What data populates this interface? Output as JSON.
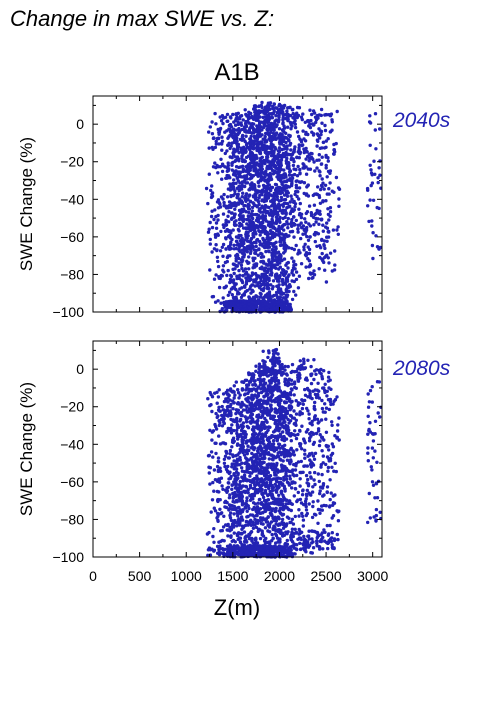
{
  "page_title": "Change in max SWE vs. Z:",
  "scenario": "A1B",
  "xlabel": "Z(m)",
  "ylabel": "SWE Change (%)",
  "colors": {
    "points": "#2323b4",
    "period_label": "#2323b4",
    "text": "#000000"
  },
  "chart_data": [
    {
      "type": "scatter",
      "period": "2040s",
      "xlim": [
        0,
        3100
      ],
      "ylim": [
        -100,
        15
      ],
      "xticks": [
        0,
        500,
        1000,
        1500,
        2000,
        2500,
        3000
      ],
      "yticks": [
        0,
        -20,
        -40,
        -60,
        -80,
        -100
      ],
      "ytick_labels": [
        "0",
        "−20",
        "−40",
        "−60",
        "−80",
        "−100"
      ],
      "columns": [
        {
          "x": 1290,
          "ymin": -96,
          "ymax": 6,
          "n": 40
        },
        {
          "x": 1320,
          "ymin": -93,
          "ymax": 4,
          "n": 35
        },
        {
          "x": 1410,
          "ymin": -100,
          "ymax": 6,
          "n": 60
        },
        {
          "x": 1460,
          "ymin": -100,
          "ymax": 5,
          "n": 70
        },
        {
          "x": 1500,
          "ymin": -100,
          "ymax": 6,
          "n": 80
        },
        {
          "x": 1540,
          "ymin": -100,
          "ymax": 7,
          "n": 90
        },
        {
          "x": 1580,
          "ymin": -100,
          "ymax": 8,
          "n": 95
        },
        {
          "x": 1620,
          "ymin": -100,
          "ymax": 8,
          "n": 100
        },
        {
          "x": 1660,
          "ymin": -100,
          "ymax": 9,
          "n": 110
        },
        {
          "x": 1700,
          "ymin": -100,
          "ymax": 9,
          "n": 115
        },
        {
          "x": 1740,
          "ymin": -100,
          "ymax": 10,
          "n": 120
        },
        {
          "x": 1780,
          "ymin": -100,
          "ymax": 10,
          "n": 125
        },
        {
          "x": 1820,
          "ymin": -100,
          "ymax": 11,
          "n": 130
        },
        {
          "x": 1860,
          "ymin": -100,
          "ymax": 12,
          "n": 135
        },
        {
          "x": 1900,
          "ymin": -100,
          "ymax": 12,
          "n": 140
        },
        {
          "x": 1940,
          "ymin": -100,
          "ymax": 11,
          "n": 140
        },
        {
          "x": 1980,
          "ymin": -100,
          "ymax": 11,
          "n": 130
        },
        {
          "x": 2020,
          "ymin": -100,
          "ymax": 10,
          "n": 120
        },
        {
          "x": 2060,
          "ymin": -100,
          "ymax": 10,
          "n": 110
        },
        {
          "x": 2100,
          "ymin": -98,
          "ymax": 9,
          "n": 100
        },
        {
          "x": 2150,
          "ymin": -92,
          "ymax": 7,
          "n": 60
        },
        {
          "x": 2210,
          "ymin": -84,
          "ymax": 9,
          "n": 45
        },
        {
          "x": 2250,
          "ymin": -82,
          "ymax": 8,
          "n": 45
        },
        {
          "x": 2310,
          "ymin": -86,
          "ymax": 8,
          "n": 45
        },
        {
          "x": 2360,
          "ymin": -86,
          "ymax": 8,
          "n": 45
        },
        {
          "x": 2400,
          "ymin": -80,
          "ymax": 6,
          "n": 40
        },
        {
          "x": 2460,
          "ymin": -84,
          "ymax": 7,
          "n": 40
        },
        {
          "x": 2520,
          "ymin": -85,
          "ymax": 8,
          "n": 40
        },
        {
          "x": 2570,
          "ymin": -84,
          "ymax": 8,
          "n": 40
        },
        {
          "x": 3020,
          "ymin": -74,
          "ymax": 6,
          "n": 40
        }
      ]
    },
    {
      "type": "scatter",
      "period": "2080s",
      "xlim": [
        0,
        3100
      ],
      "ylim": [
        -100,
        15
      ],
      "xticks": [
        0,
        500,
        1000,
        1500,
        2000,
        2500,
        3000
      ],
      "xtick_labels": [
        "0",
        "500",
        "1000",
        "1500",
        "2000",
        "2500",
        "3000"
      ],
      "yticks": [
        0,
        -20,
        -40,
        -60,
        -80,
        -100
      ],
      "ytick_labels": [
        "0",
        "−20",
        "−40",
        "−60",
        "−80",
        "−100"
      ],
      "columns": [
        {
          "x": 1290,
          "ymin": -100,
          "ymax": -10,
          "n": 40
        },
        {
          "x": 1330,
          "ymin": -100,
          "ymax": -12,
          "n": 35
        },
        {
          "x": 1410,
          "ymin": -100,
          "ymax": -18,
          "n": 55
        },
        {
          "x": 1460,
          "ymin": -100,
          "ymax": -15,
          "n": 60
        },
        {
          "x": 1500,
          "ymin": -100,
          "ymax": -10,
          "n": 70
        },
        {
          "x": 1540,
          "ymin": -100,
          "ymax": -8,
          "n": 80
        },
        {
          "x": 1580,
          "ymin": -100,
          "ymax": -6,
          "n": 85
        },
        {
          "x": 1620,
          "ymin": -100,
          "ymax": -5,
          "n": 90
        },
        {
          "x": 1660,
          "ymin": -100,
          "ymax": -3,
          "n": 95
        },
        {
          "x": 1700,
          "ymin": -100,
          "ymax": -2,
          "n": 100
        },
        {
          "x": 1740,
          "ymin": -100,
          "ymax": 0,
          "n": 110
        },
        {
          "x": 1780,
          "ymin": -100,
          "ymax": 2,
          "n": 115
        },
        {
          "x": 1820,
          "ymin": -100,
          "ymax": 3,
          "n": 120
        },
        {
          "x": 1860,
          "ymin": -100,
          "ymax": 5,
          "n": 125
        },
        {
          "x": 1900,
          "ymin": -100,
          "ymax": 11,
          "n": 130
        },
        {
          "x": 1940,
          "ymin": -100,
          "ymax": 9,
          "n": 130
        },
        {
          "x": 1980,
          "ymin": -100,
          "ymax": 6,
          "n": 120
        },
        {
          "x": 2020,
          "ymin": -100,
          "ymax": 7,
          "n": 110
        },
        {
          "x": 2060,
          "ymin": -100,
          "ymax": 4,
          "n": 100
        },
        {
          "x": 2100,
          "ymin": -100,
          "ymax": 2,
          "n": 90
        },
        {
          "x": 2150,
          "ymin": -92,
          "ymax": 1,
          "n": 50
        },
        {
          "x": 2210,
          "ymin": -96,
          "ymax": 6,
          "n": 45
        },
        {
          "x": 2250,
          "ymin": -94,
          "ymax": 5,
          "n": 45
        },
        {
          "x": 2310,
          "ymin": -98,
          "ymax": 8,
          "n": 45
        },
        {
          "x": 2360,
          "ymin": -96,
          "ymax": 4,
          "n": 45
        },
        {
          "x": 2400,
          "ymin": -92,
          "ymax": 0,
          "n": 40
        },
        {
          "x": 2460,
          "ymin": -94,
          "ymax": 2,
          "n": 40
        },
        {
          "x": 2520,
          "ymin": -96,
          "ymax": -2,
          "n": 40
        },
        {
          "x": 2570,
          "ymin": -92,
          "ymax": -5,
          "n": 40
        },
        {
          "x": 3020,
          "ymin": -82,
          "ymax": -2,
          "n": 40
        }
      ]
    }
  ]
}
